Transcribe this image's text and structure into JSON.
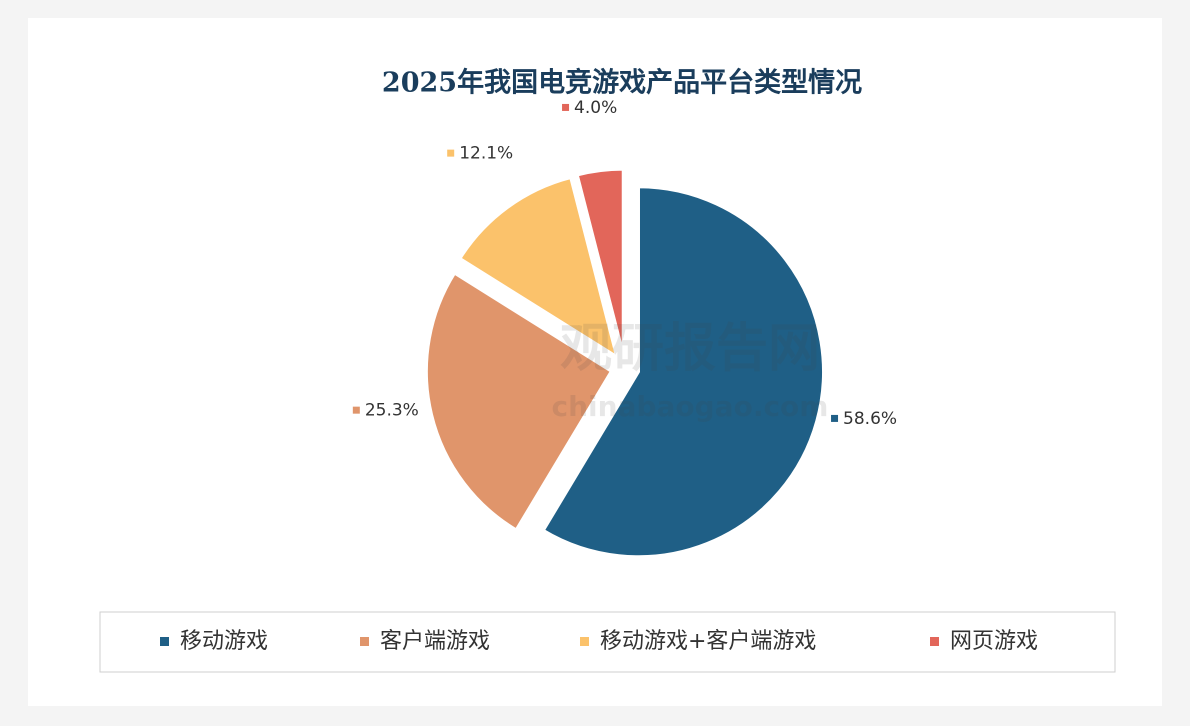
{
  "chart_data": {
    "type": "pie",
    "title": "2025年我国电竞游戏产品平台类型情况",
    "categories": [
      "移动游戏",
      "客户端游戏",
      "移动游戏+客户端游戏",
      "网页游戏"
    ],
    "values": [
      58.6,
      25.3,
      12.1,
      4.0
    ],
    "value_labels": [
      "58.6%",
      "25.3%",
      "12.1%",
      "4.0%"
    ],
    "colors": [
      "#1f5f86",
      "#e0956b",
      "#fbc26b",
      "#e2665a"
    ],
    "legend": "bottom",
    "watermark": [
      "观研报告网",
      "chinabaogao.com"
    ]
  }
}
